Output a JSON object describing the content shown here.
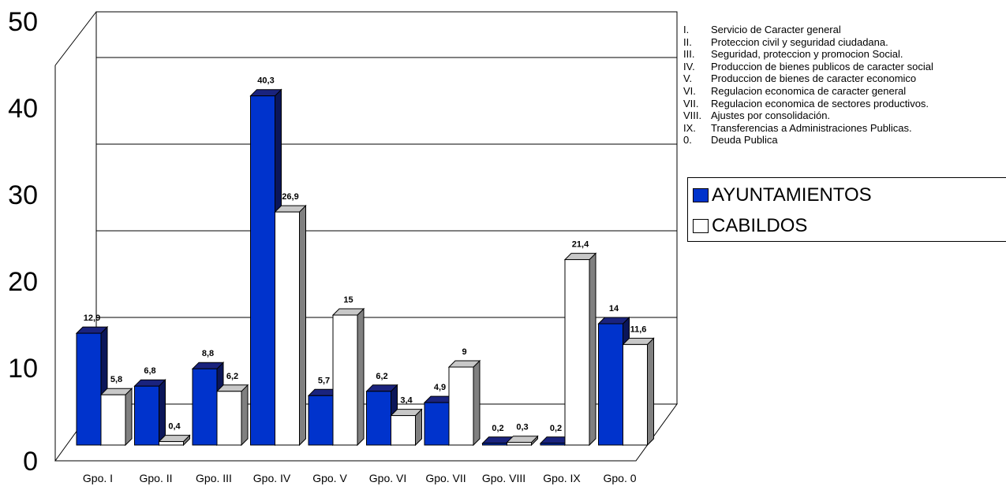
{
  "chart_data": {
    "type": "bar",
    "categories": [
      "Gpo. I",
      "Gpo. II",
      "Gpo. III",
      "Gpo. IV",
      "Gpo. V",
      "Gpo. VI",
      "Gpo. VII",
      "Gpo. VIII",
      "Gpo. IX",
      "Gpo. 0"
    ],
    "series": [
      {
        "name": "AYUNTAMIENTOS",
        "color": "#0033cc",
        "values": [
          12.9,
          6.8,
          8.8,
          40.3,
          5.7,
          6.2,
          4.9,
          0.2,
          0.2,
          14
        ],
        "labels": [
          "12,9",
          "6,8",
          "8,8",
          "40,3",
          "5,7",
          "6,2",
          "4,9",
          "0,2",
          "0,2",
          "14"
        ]
      },
      {
        "name": "CABILDOS",
        "color": "#ffffff",
        "values": [
          5.8,
          0.4,
          6.2,
          26.9,
          15,
          3.4,
          9,
          0.3,
          21.4,
          11.6
        ],
        "labels": [
          "5,8",
          "0,4",
          "6,2",
          "26,9",
          "15",
          "3,4",
          "9",
          "0,3",
          "21,4",
          "11,6"
        ]
      }
    ],
    "y_ticks": [
      "0",
      "10",
      "20",
      "30",
      "40",
      "50"
    ],
    "ylim": [
      0,
      50
    ],
    "grid": true,
    "legend_position": "right",
    "notes": [
      {
        "num": "I.",
        "text": "Servicio de Caracter general"
      },
      {
        "num": "II.",
        "text": "Proteccion civil y seguridad ciudadana."
      },
      {
        "num": "III.",
        "text": "Seguridad, proteccion y promocion Social."
      },
      {
        "num": "IV.",
        "text": "Produccion de bienes publicos de caracter social"
      },
      {
        "num": "V.",
        "text": "Produccion de bienes de caracter economico"
      },
      {
        "num": "VI.",
        "text": "Regulacion economica de caracter general"
      },
      {
        "num": "VII.",
        "text": "Regulacion economica de sectores productivos."
      },
      {
        "num": "VIII.",
        "text": "Ajustes por consolidación."
      },
      {
        "num": "IX.",
        "text": "Transferencias a Administraciones Publicas."
      },
      {
        "num": "0.",
        "text": "Deuda Publica"
      }
    ]
  }
}
